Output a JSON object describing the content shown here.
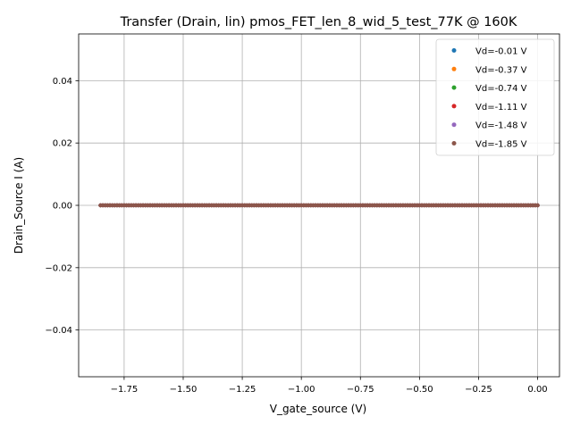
{
  "chart_data": {
    "type": "scatter",
    "title": "Transfer (Drain, lin) pmos_FET_len_8_wid_5_test_77K @ 160K",
    "xlabel": "V_gate_source (V)",
    "ylabel": "Drain_Source I (A)",
    "xlim": [
      -1.9425,
      0.0925
    ],
    "ylim": [
      -0.055,
      0.055
    ],
    "x_ticks": [
      -1.75,
      -1.5,
      -1.25,
      -1.0,
      -0.75,
      -0.5,
      -0.25,
      0.0
    ],
    "x_tick_labels": [
      "−1.75",
      "−1.50",
      "−1.25",
      "−1.00",
      "−0.75",
      "−0.50",
      "−0.25",
      "0.00"
    ],
    "y_ticks": [
      -0.04,
      -0.02,
      0.0,
      0.02,
      0.04
    ],
    "y_tick_labels": [
      "−0.04",
      "−0.02",
      "0.00",
      "0.02",
      "0.04"
    ],
    "grid": true,
    "legend_position": "top-right",
    "x_range": {
      "start": -1.85,
      "stop": 0.0,
      "step": 0.01
    },
    "series": [
      {
        "name": "Vd=-0.01 V",
        "color": "#1f77b4",
        "y_value": 0.0
      },
      {
        "name": "Vd=-0.37 V",
        "color": "#ff7f0e",
        "y_value": 0.0
      },
      {
        "name": "Vd=-0.74 V",
        "color": "#2ca02c",
        "y_value": 0.0
      },
      {
        "name": "Vd=-1.11 V",
        "color": "#d62728",
        "y_value": 0.0
      },
      {
        "name": "Vd=-1.48 V",
        "color": "#9467bd",
        "y_value": 0.0
      },
      {
        "name": "Vd=-1.85 V",
        "color": "#8c564b",
        "y_value": 0.0
      }
    ]
  }
}
